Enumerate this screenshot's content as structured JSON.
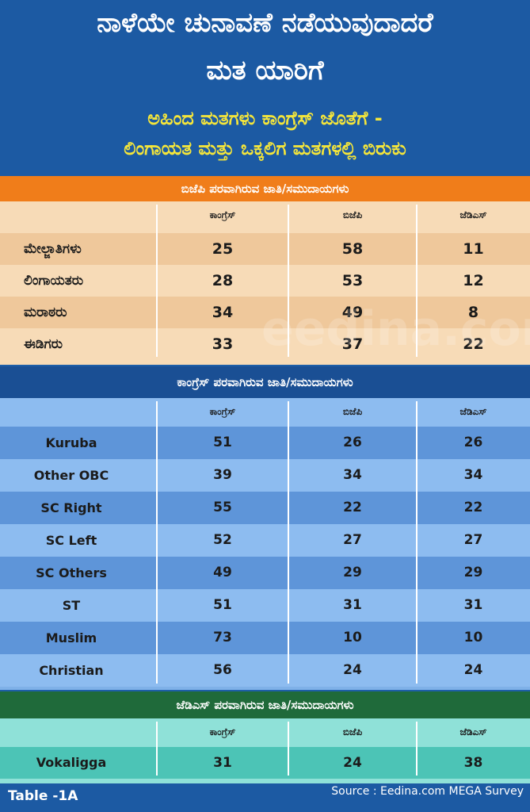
{
  "header": {
    "title_line1": "ನಾಳೆಯೇ ಚುನಾವಣೆ ನಡೆಯುವುದಾದರೆ",
    "title_line2": "ಮತ ಯಾರಿಗೆ",
    "subtitle_line1": "ಅಹಿಂದ ಮತಗಳು ಕಾಂಗ್ರೆಸ್ ಜೊತೆಗೆ -",
    "subtitle_line2": "ಲಿಂಗಾಯತ ಮತ್ತು ಒಕ್ಕಲಿಗ ಮತಗಳಲ್ಲಿ ಬಿರುಕು"
  },
  "columns": [
    "ಕಾಂಗ್ರೆಸ್",
    "ಬಿಜೆಪಿ",
    "ಜೆಡಿಎಸ್"
  ],
  "colors": {
    "header_bg": "#1c5aa3",
    "subtitle": "#f5e63a",
    "orange_band": "#f07d1a",
    "orange_light": "#f7dbb7",
    "orange_dark": "#efc89b",
    "blue_band": "#1a4f94",
    "blue_light": "#8dbcf0",
    "blue_dark": "#5e95d9",
    "green_band": "#1f6a3a",
    "green_light": "#8fe1d8"
  },
  "chart_data": {
    "type": "table",
    "title": "ನಾಳೆಯೇ ಚುನಾವಣೆ ನಡೆಯುವುದಾದರೆ ಮತ ಯಾರಿಗೆ",
    "categories": [
      "ಕಾಂಗ್ರೆಸ್",
      "ಬಿಜೆಪಿ",
      "ಜೆಡಿಎಸ್"
    ],
    "groups": [
      {
        "name": "ಬಿಜೆಪಿ ಪರವಾಗಿರುವ ಜಾತಿ/ಸಮುದಾಯಗಳು",
        "rows": [
          {
            "name": "ಮೇಲ್ಜಾತಿಗಳು",
            "values": [
              25,
              58,
              11
            ]
          },
          {
            "name": "ಲಿಂಗಾಯತರು",
            "values": [
              28,
              53,
              12
            ]
          },
          {
            "name": "ಮರಾಠರು",
            "values": [
              34,
              49,
              8
            ]
          },
          {
            "name": "ಈಡಿಗರು",
            "values": [
              33,
              37,
              22
            ]
          }
        ]
      },
      {
        "name": "ಕಾಂಗ್ರೆಸ್ ಪರವಾಗಿರುವ ಜಾತಿ/ಸಮುದಾಯಗಳು",
        "rows": [
          {
            "name": "Kuruba",
            "values": [
              51,
              26,
              26
            ]
          },
          {
            "name": "Other OBC",
            "values": [
              39,
              34,
              34
            ]
          },
          {
            "name": "SC Right",
            "values": [
              55,
              22,
              22
            ]
          },
          {
            "name": "SC Left",
            "values": [
              52,
              27,
              27
            ]
          },
          {
            "name": "SC Others",
            "values": [
              49,
              29,
              29
            ]
          },
          {
            "name": "ST",
            "values": [
              51,
              31,
              31
            ]
          },
          {
            "name": "Muslim",
            "values": [
              73,
              10,
              10
            ]
          },
          {
            "name": "Christian",
            "values": [
              56,
              24,
              24
            ]
          }
        ]
      },
      {
        "name": "ಜೆಡಿಎಸ್ ಪರವಾಗಿರುವ ಜಾತಿ/ಸಮುದಾಯಗಳು",
        "rows": [
          {
            "name": "Vokaligga",
            "values": [
              31,
              24,
              38
            ]
          }
        ]
      }
    ]
  },
  "footer": {
    "table_label": "Table -1A",
    "source": "Source : Eedina.com MEGA Survey"
  },
  "watermark": "eedina.com"
}
